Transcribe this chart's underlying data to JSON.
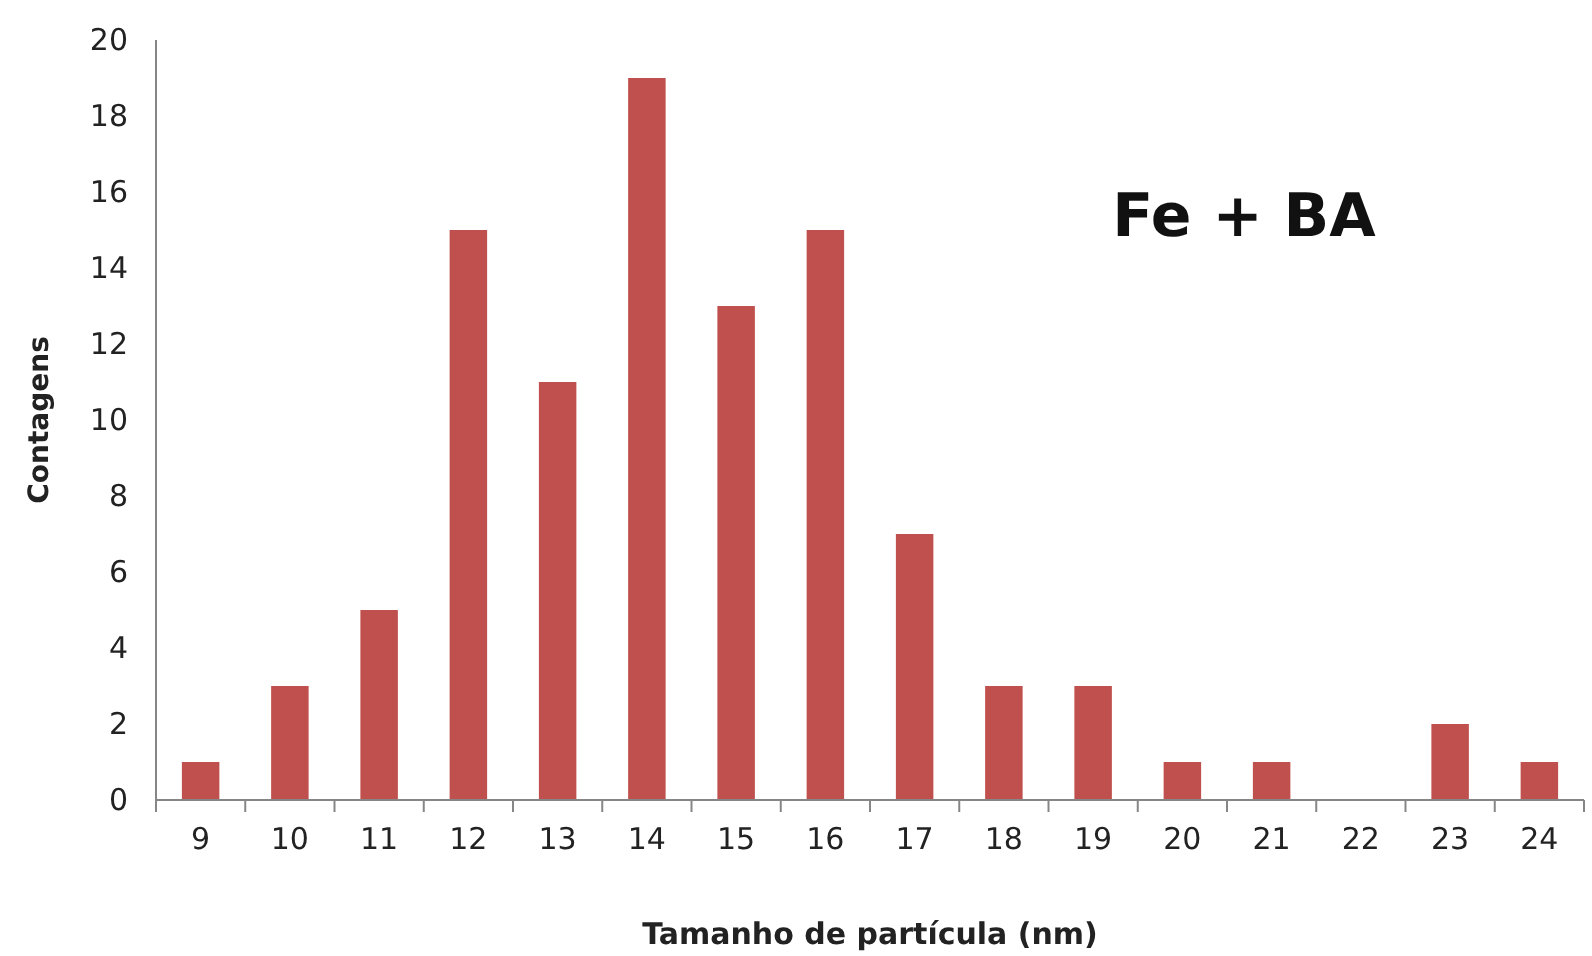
{
  "chart_data": {
    "type": "bar",
    "categories": [
      "9",
      "10",
      "11",
      "12",
      "13",
      "14",
      "15",
      "16",
      "17",
      "18",
      "19",
      "20",
      "21",
      "22",
      "23",
      "24"
    ],
    "values": [
      1,
      3,
      5,
      15,
      11,
      19,
      13,
      15,
      7,
      3,
      3,
      1,
      1,
      0,
      2,
      1
    ],
    "color": "#c0504d",
    "xlabel": "Tamanho de partícula (nm)",
    "ylabel": "Contagens",
    "ylim": [
      0,
      20
    ],
    "yticks": [
      0,
      2,
      4,
      6,
      8,
      10,
      12,
      14,
      16,
      18,
      20
    ],
    "annotations": [
      "Fe + BA"
    ]
  }
}
